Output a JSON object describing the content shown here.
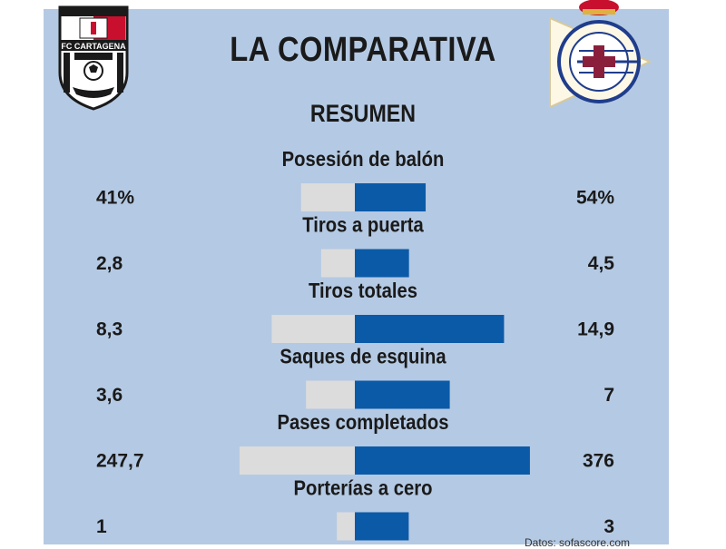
{
  "header": {
    "title": "LA COMPARATIVA",
    "subtitle": "RESUMEN",
    "left_team_crest_text": "FC CARTAGENA",
    "right_team_crest_text": "REAL CLUB DEPORTIVO LA CORUÑA"
  },
  "source": "Datos: sofascore.com",
  "colors": {
    "background": "#b4c9e3",
    "left_bar": "#dcdcdc",
    "right_bar": "#0b5aa8",
    "text": "#1a1a1a"
  },
  "chart_data": {
    "type": "bar",
    "orientation": "diverging-horizontal",
    "categories": [
      "Posesión de balón",
      "Tiros a puerta",
      "Tiros totales",
      "Saques de esquina",
      "Pases completados",
      "Porterías a cero"
    ],
    "series": [
      {
        "values": [
          41,
          2.8,
          8.3,
          3.6,
          247.7,
          1
        ],
        "labels": [
          "41%",
          "2,8",
          "8,3",
          "3,6",
          "247,7",
          "1"
        ]
      },
      {
        "values": [
          54,
          4.5,
          14.9,
          7,
          376,
          3
        ],
        "labels": [
          "54%",
          "4,5",
          "14,9",
          "7",
          "376",
          "3"
        ]
      }
    ],
    "title": "LA COMPARATIVA",
    "subtitle": "RESUMEN"
  }
}
